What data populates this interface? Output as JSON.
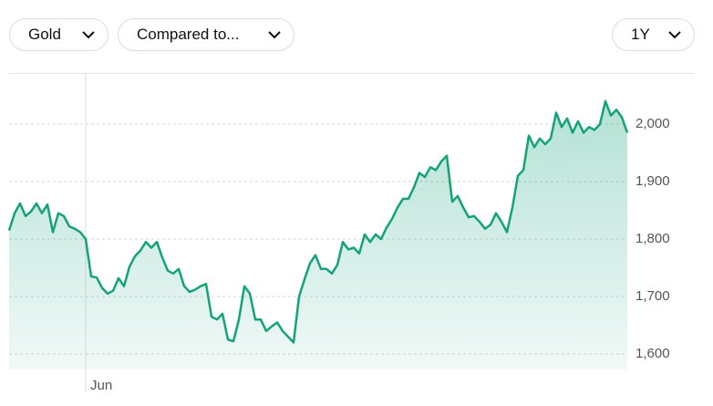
{
  "controls": {
    "asset": "Gold",
    "compare": "Compared to...",
    "range": "1Y"
  },
  "chart_data": {
    "type": "line",
    "categories": [
      null,
      null,
      null,
      null,
      null,
      null,
      null,
      null,
      null,
      null,
      null,
      null,
      null,
      null,
      "Jun",
      null,
      null,
      null,
      null,
      null,
      null,
      null,
      null,
      null,
      null,
      null,
      null,
      null,
      null,
      null,
      null,
      null,
      null,
      null,
      null,
      null,
      null,
      null,
      null,
      null,
      null,
      null,
      null,
      null,
      null,
      null,
      null,
      null,
      null,
      null,
      null,
      null,
      null,
      null,
      null,
      null,
      null,
      null,
      null,
      null,
      null,
      null,
      null,
      null,
      null,
      null,
      null,
      null,
      null,
      null,
      null,
      null,
      null,
      null,
      null,
      null,
      null,
      null,
      null,
      null,
      null,
      null,
      null,
      null,
      null,
      null,
      null,
      null,
      null,
      null,
      null,
      null,
      null,
      null,
      null,
      null,
      null,
      null,
      null,
      null,
      null,
      null,
      null,
      null,
      null,
      null,
      null,
      null,
      null,
      null,
      null,
      null,
      null,
      null
    ],
    "values": [
      1815,
      1845,
      1862,
      1840,
      1848,
      1862,
      1845,
      1860,
      1812,
      1845,
      1840,
      1822,
      1818,
      1812,
      1800,
      1735,
      1733,
      1715,
      1705,
      1710,
      1732,
      1718,
      1752,
      1770,
      1780,
      1795,
      1785,
      1795,
      1768,
      1745,
      1740,
      1748,
      1718,
      1708,
      1712,
      1718,
      1722,
      1665,
      1660,
      1670,
      1625,
      1622,
      1660,
      1718,
      1705,
      1660,
      1660,
      1640,
      1648,
      1655,
      1640,
      1630,
      1620,
      1700,
      1730,
      1758,
      1772,
      1748,
      1748,
      1740,
      1755,
      1795,
      1782,
      1785,
      1775,
      1808,
      1795,
      1808,
      1800,
      1820,
      1835,
      1855,
      1870,
      1870,
      1890,
      1915,
      1908,
      1925,
      1920,
      1935,
      1945,
      1865,
      1875,
      1855,
      1838,
      1840,
      1830,
      1818,
      1825,
      1845,
      1830,
      1812,
      1855,
      1910,
      1920,
      1980,
      1960,
      1975,
      1965,
      1975,
      2020,
      1995,
      2010,
      1985,
      2005,
      1985,
      1995,
      1990,
      2000,
      2040,
      2015,
      2025,
      2012,
      1985
    ],
    "color": "#14a27a",
    "ylim": [
      1573,
      2089
    ],
    "yticks": [
      {
        "value": 1600,
        "label": "1,600"
      },
      {
        "value": 1700,
        "label": "1,700"
      },
      {
        "value": 1800,
        "label": "1,800"
      },
      {
        "value": 1900,
        "label": "1,900"
      },
      {
        "value": 2000,
        "label": "2,000"
      }
    ],
    "grid": true
  }
}
